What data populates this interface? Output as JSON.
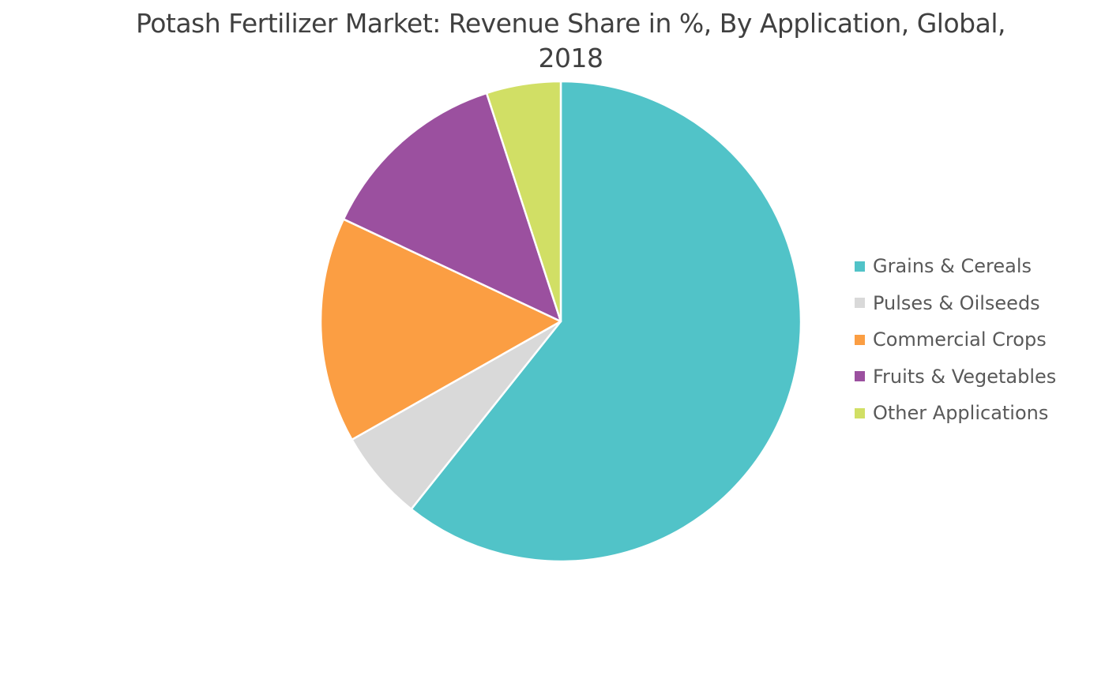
{
  "chart_data": {
    "type": "pie",
    "title": "Potash Fertilizer Market: Revenue Share in %, By Application, Global, 2018",
    "title_lines": [
      "Potash Fertilizer Market: Revenue Share in %, By Application, Global,",
      "2018"
    ],
    "legend_position": "right",
    "start_angle": "12 o'clock, clockwise",
    "slices": [
      {
        "label": "Grains & Cereals",
        "value": 60.7,
        "color": "#51C3C8"
      },
      {
        "label": "Pulses & Oilseeds",
        "value": 6.1,
        "color": "#D9D9D9"
      },
      {
        "label": "Commercial Crops",
        "value": 15.2,
        "color": "#FB9E43"
      },
      {
        "label": "Fruits & Vegetables",
        "value": 13.0,
        "color": "#9B509F"
      },
      {
        "label": "Other Applications",
        "value": 5.0,
        "color": "#D1DF65"
      }
    ]
  }
}
